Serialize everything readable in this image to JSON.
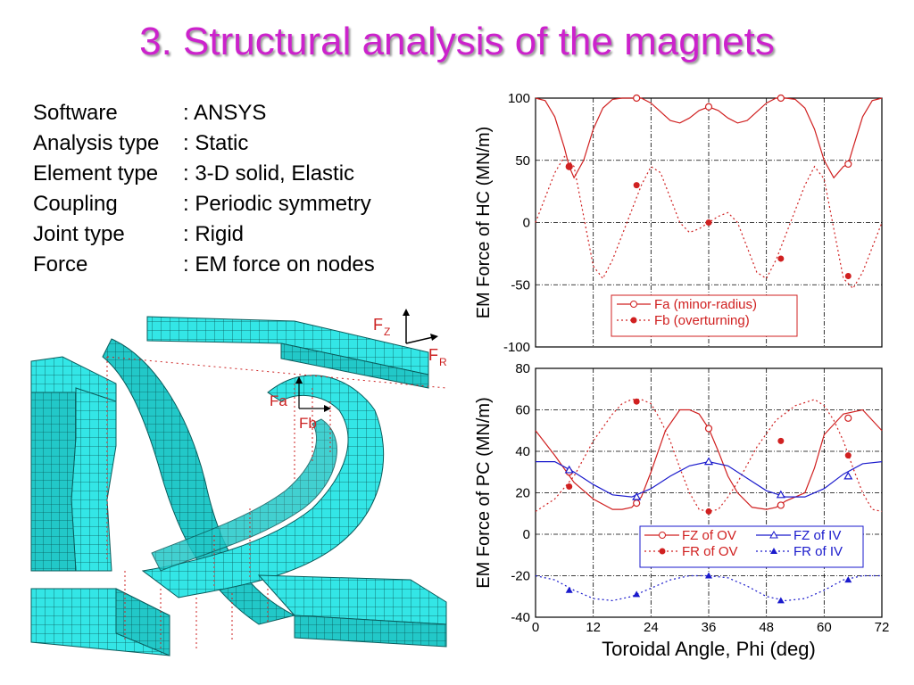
{
  "slide": {
    "title": "3. Structural analysis of the magnets",
    "specs": [
      {
        "key": "Software",
        "value": ": ANSYS"
      },
      {
        "key": "Analysis type",
        "value": ": Static"
      },
      {
        "key": "Element type",
        "value": ": 3-D solid, Elastic"
      },
      {
        "key": "Coupling",
        "value": ": Periodic symmetry"
      },
      {
        "key": "Joint type",
        "value": ": Rigid"
      },
      {
        "key": "Force",
        "value": ": EM force on nodes"
      }
    ]
  },
  "figure": {
    "labels": {
      "fz": "F",
      "fz_sub": "Z",
      "fr": "F",
      "fr_sub": "R",
      "fa": "Fa",
      "fb": "Fb"
    },
    "colors": {
      "mesh_fill": "#33e6e6",
      "mesh_line": "#0a5c5c",
      "force": "#cc2222"
    }
  },
  "chart_data": [
    {
      "type": "line",
      "ylabel": "EM Force of HC  (MN/m)",
      "ylim": [
        -100,
        100
      ],
      "yticks": [
        "100",
        "50",
        "0",
        "-50",
        "-100"
      ],
      "xlim": [
        0,
        72
      ],
      "grid": true,
      "legend_position": "lower-right",
      "series": [
        {
          "name": "Fa (minor-radius)",
          "style": "solid",
          "marker": "open-circle",
          "color": "#d02020",
          "x": [
            0,
            2,
            4,
            6,
            7,
            8,
            10,
            12,
            14,
            16,
            18,
            20,
            21,
            22,
            24,
            26,
            28,
            30,
            32,
            34,
            36,
            38,
            40,
            42,
            44,
            46,
            48,
            50,
            51,
            52,
            54,
            56,
            58,
            60,
            62,
            64,
            65,
            66,
            68,
            70,
            72
          ],
          "values": [
            100,
            98,
            85,
            60,
            45,
            36,
            50,
            75,
            92,
            99,
            100,
            100,
            100,
            100,
            96,
            89,
            82,
            80,
            84,
            90,
            93,
            90,
            84,
            80,
            82,
            89,
            96,
            100,
            100,
            100,
            99,
            92,
            75,
            50,
            36,
            45,
            47,
            60,
            85,
            98,
            100
          ],
          "marker_points": [
            [
              7,
              45
            ],
            [
              21,
              100
            ],
            [
              36,
              93
            ],
            [
              51,
              100
            ],
            [
              65,
              47
            ]
          ]
        },
        {
          "name": "Fb (overturning)",
          "style": "dotted",
          "marker": "filled-circle",
          "color": "#d02020",
          "x": [
            0,
            2,
            4,
            6,
            8,
            10,
            12,
            14,
            16,
            18,
            20,
            22,
            24,
            26,
            28,
            30,
            32,
            34,
            36,
            38,
            40,
            42,
            44,
            46,
            48,
            50,
            52,
            54,
            56,
            58,
            60,
            62,
            64,
            66,
            68,
            70,
            72
          ],
          "values": [
            0,
            20,
            40,
            53,
            45,
            5,
            -35,
            -45,
            -30,
            -10,
            10,
            30,
            45,
            40,
            20,
            0,
            -8,
            -5,
            0,
            5,
            8,
            0,
            -20,
            -40,
            -45,
            -30,
            -10,
            10,
            30,
            45,
            35,
            -5,
            -45,
            -53,
            -40,
            -20,
            0
          ],
          "marker_points": [
            [
              7,
              45
            ],
            [
              21,
              30
            ],
            [
              36,
              0
            ],
            [
              51,
              -29
            ],
            [
              65,
              -43
            ]
          ]
        }
      ]
    },
    {
      "type": "line",
      "ylabel": "EM Force of PC (MN/m)",
      "xlabel": "Toroidal Angle, Phi (deg)",
      "ylim": [
        -40,
        80
      ],
      "yticks": [
        "80",
        "60",
        "40",
        "20",
        "0",
        "-20",
        "-40"
      ],
      "xlim": [
        0,
        72
      ],
      "xticks": [
        "0",
        "12",
        "24",
        "36",
        "48",
        "60",
        "72"
      ],
      "grid": true,
      "legend_position": "lower-right",
      "series": [
        {
          "name": "FZ of OV",
          "style": "solid",
          "marker": "open-circle",
          "color": "#d02020",
          "x": [
            0,
            4,
            8,
            12,
            16,
            18,
            20,
            22,
            24,
            27,
            30,
            32,
            34,
            36,
            38,
            40,
            42,
            45,
            48,
            50,
            52,
            54,
            56,
            58,
            60,
            64,
            68,
            72
          ],
          "values": [
            50,
            38,
            25,
            17,
            12,
            12,
            13,
            18,
            30,
            50,
            60,
            60,
            58,
            51,
            40,
            28,
            20,
            13,
            12,
            13,
            16,
            18,
            20,
            32,
            48,
            58,
            60,
            50
          ],
          "marker_points": [
            [
              7,
              30
            ],
            [
              21,
              15
            ],
            [
              36,
              51
            ],
            [
              51,
              14
            ],
            [
              65,
              56
            ]
          ]
        },
        {
          "name": "FR of OV",
          "style": "dotted",
          "marker": "filled-circle",
          "color": "#d02020",
          "x": [
            0,
            4,
            8,
            12,
            16,
            18,
            20,
            22,
            24,
            26,
            28,
            30,
            32,
            34,
            36,
            38,
            40,
            42,
            46,
            50,
            54,
            58,
            60,
            62,
            64,
            66,
            68,
            70,
            72
          ],
          "values": [
            11,
            17,
            28,
            45,
            58,
            63,
            65,
            65,
            63,
            55,
            45,
            32,
            20,
            12,
            11,
            12,
            18,
            25,
            42,
            55,
            62,
            65,
            62,
            55,
            45,
            32,
            20,
            12,
            11
          ],
          "marker_points": [
            [
              7,
              23
            ],
            [
              21,
              64
            ],
            [
              36,
              11
            ],
            [
              51,
              45
            ],
            [
              65,
              38
            ]
          ]
        },
        {
          "name": "FZ of IV",
          "style": "solid",
          "marker": "open-triangle",
          "color": "#1a1acc",
          "x": [
            0,
            4,
            8,
            12,
            16,
            20,
            24,
            28,
            32,
            36,
            40,
            44,
            48,
            52,
            56,
            60,
            64,
            68,
            72
          ],
          "values": [
            35,
            35,
            30,
            24,
            19,
            18,
            22,
            28,
            33,
            35,
            33,
            27,
            21,
            18,
            18,
            22,
            29,
            34,
            35
          ],
          "marker_points": [
            [
              7,
              31
            ],
            [
              21,
              18
            ],
            [
              36,
              35
            ],
            [
              51,
              19
            ],
            [
              65,
              28
            ]
          ]
        },
        {
          "name": "FR of IV",
          "style": "dotted",
          "marker": "filled-triangle",
          "color": "#1a1acc",
          "x": [
            0,
            4,
            8,
            12,
            16,
            20,
            24,
            28,
            32,
            36,
            40,
            44,
            48,
            52,
            56,
            60,
            64,
            68,
            72
          ],
          "values": [
            -20,
            -22,
            -27,
            -31,
            -32,
            -30,
            -26,
            -22,
            -20,
            -20,
            -21,
            -25,
            -30,
            -32,
            -31,
            -27,
            -22,
            -20,
            -20
          ],
          "marker_points": [
            [
              7,
              -27
            ],
            [
              21,
              -29
            ],
            [
              36,
              -20
            ],
            [
              51,
              -32
            ],
            [
              65,
              -22
            ]
          ]
        }
      ]
    }
  ]
}
